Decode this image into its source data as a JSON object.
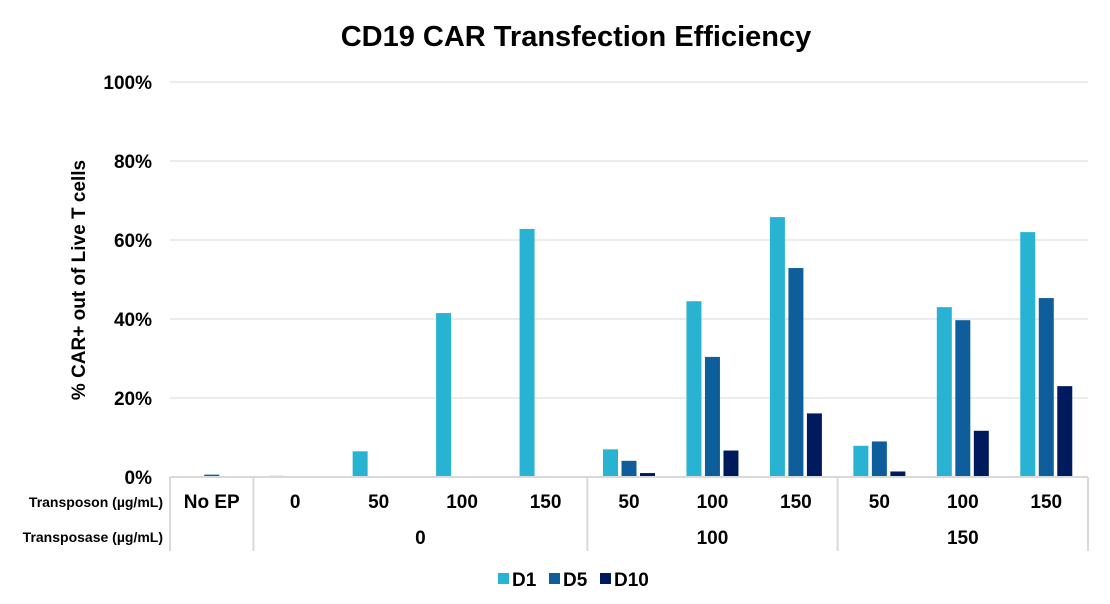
{
  "chart_data": {
    "type": "bar",
    "title": "CD19 CAR Transfection Efficiency",
    "ylabel": "% CAR+ out of Live T cells",
    "ylim": [
      0,
      100
    ],
    "yticks": [
      "0%",
      "20%",
      "40%",
      "60%",
      "80%",
      "100%"
    ],
    "grid": true,
    "legend_position": "bottom",
    "row_labels": {
      "transposon": "Transposon (µg/mL)",
      "transposase": "Transposase (µg/mL)"
    },
    "categories": [
      "No EP",
      "0",
      "50",
      "100",
      "150",
      "50",
      "100",
      "150",
      "50",
      "100",
      "150"
    ],
    "transposase_groups": [
      {
        "label": "",
        "span": 1
      },
      {
        "label": "0",
        "span": 4
      },
      {
        "label": "100",
        "span": 3
      },
      {
        "label": "150",
        "span": 3
      }
    ],
    "series": [
      {
        "name": "D1",
        "color": "#29B3D3",
        "values": [
          0.2,
          0.3,
          6.5,
          41.5,
          62.8,
          7.0,
          44.5,
          65.8,
          7.9,
          43.0,
          62.0
        ]
      },
      {
        "name": "D5",
        "color": "#0F5E9C",
        "values": [
          0.6,
          0,
          0,
          0,
          0,
          4.1,
          30.4,
          52.9,
          9.0,
          39.7,
          45.3
        ]
      },
      {
        "name": "D10",
        "color": "#001A5E",
        "values": [
          0,
          0,
          0,
          0,
          0,
          1.0,
          6.7,
          16.1,
          1.4,
          11.7,
          23.0
        ]
      }
    ]
  }
}
